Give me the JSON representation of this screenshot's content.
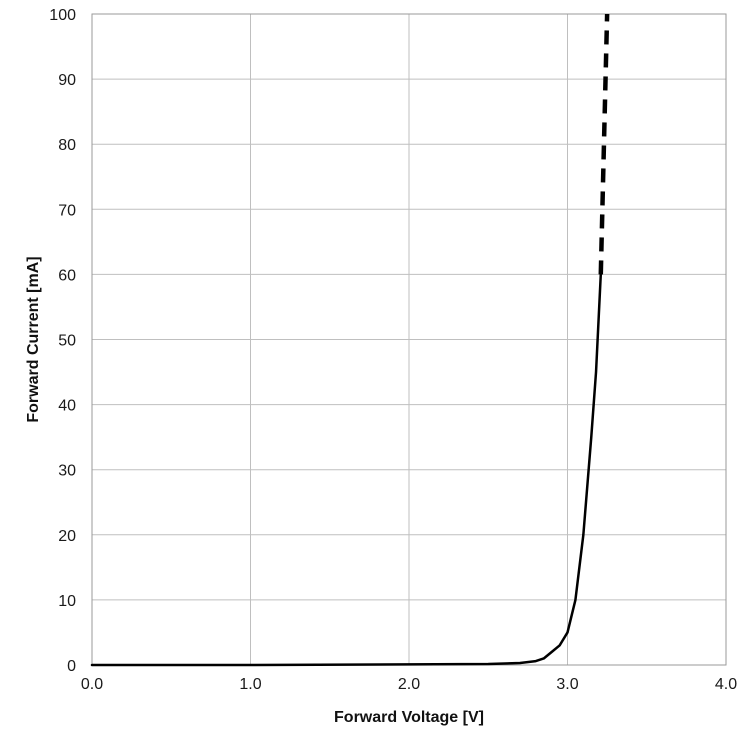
{
  "chart_data": {
    "type": "line",
    "title": "",
    "xlabel": "Forward Voltage [V]",
    "ylabel": "Forward Current [mA]",
    "xlim": [
      0.0,
      4.0
    ],
    "ylim": [
      0,
      100
    ],
    "x_ticks": [
      0.0,
      1.0,
      2.0,
      3.0,
      4.0
    ],
    "x_tick_labels": [
      "0.0",
      "1.0",
      "2.0",
      "3.0",
      "4.0"
    ],
    "y_ticks": [
      0,
      10,
      20,
      30,
      40,
      50,
      60,
      70,
      80,
      90,
      100
    ],
    "y_tick_labels": [
      "0",
      "10",
      "20",
      "30",
      "40",
      "50",
      "60",
      "70",
      "80",
      "90",
      "100"
    ],
    "grid": true,
    "legend": "none",
    "series": [
      {
        "style": "solid",
        "color": "#000000",
        "x": [
          0.0,
          1.0,
          2.0,
          2.5,
          2.7,
          2.8,
          2.85,
          2.9,
          2.95,
          3.0,
          3.05,
          3.1,
          3.15,
          3.18,
          3.21
        ],
        "y": [
          0,
          0,
          0.1,
          0.15,
          0.3,
          0.6,
          1.0,
          2.0,
          3.0,
          5.0,
          10.0,
          20.0,
          35.0,
          45.0,
          60.0
        ]
      },
      {
        "style": "dashed",
        "color": "#000000",
        "x": [
          3.21,
          3.22,
          3.23,
          3.24,
          3.25
        ],
        "y": [
          60.0,
          70.0,
          80.0,
          90.0,
          100.0
        ]
      }
    ]
  }
}
